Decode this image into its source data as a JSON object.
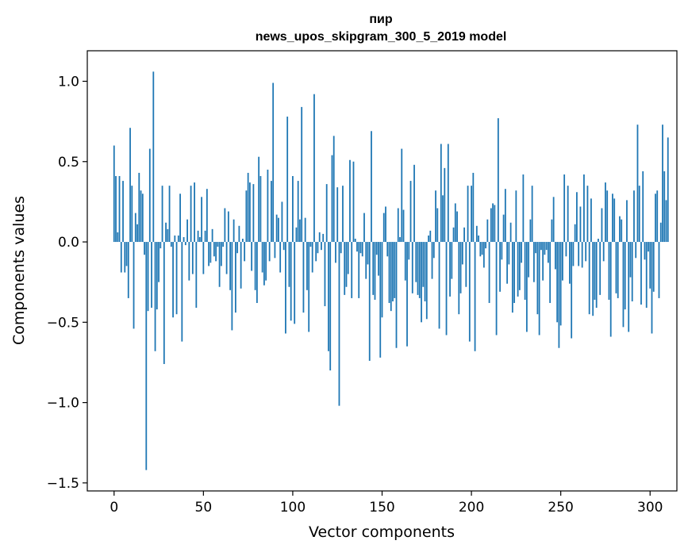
{
  "chart_data": {
    "type": "bar",
    "title": "пир",
    "subtitle": "news_upos_skipgram_300_5_2019 model",
    "xlabel": "Vector components",
    "ylabel": "Components values",
    "xlim": [
      -15,
      315
    ],
    "ylim": [
      -1.55,
      1.19
    ],
    "xticks": [
      0,
      50,
      100,
      150,
      200,
      250,
      300
    ],
    "xtick_labels": [
      "0",
      "50",
      "100",
      "150",
      "200",
      "250",
      "300"
    ],
    "yticks": [
      -1.5,
      -1.0,
      -0.5,
      0.0,
      0.5,
      1.0
    ],
    "ytick_labels": [
      "−1.5",
      "−1.0",
      "−0.5",
      "0.0",
      "0.5",
      "1.0"
    ],
    "bar_color": "#1f77b4",
    "grid": false,
    "values": [
      0.6,
      0.41,
      0.06,
      0.41,
      -0.19,
      0.38,
      -0.19,
      -0.15,
      -0.35,
      0.71,
      0.35,
      -0.54,
      0.18,
      0.11,
      0.43,
      0.32,
      0.3,
      -0.08,
      -1.42,
      -0.43,
      0.58,
      -0.41,
      1.06,
      -0.68,
      -0.42,
      -0.25,
      -0.04,
      0.35,
      -0.76,
      0.12,
      0.08,
      0.35,
      -0.03,
      -0.47,
      0.04,
      -0.45,
      0.04,
      0.3,
      -0.62,
      0.03,
      -0.02,
      0.14,
      -0.24,
      0.35,
      -0.2,
      0.37,
      -0.41,
      0.07,
      0.03,
      0.28,
      -0.2,
      0.07,
      0.33,
      -0.15,
      -0.13,
      0.08,
      -0.09,
      -0.12,
      -0.03,
      -0.28,
      -0.15,
      -0.03,
      0.21,
      -0.2,
      0.19,
      -0.3,
      -0.55,
      0.14,
      -0.44,
      -0.07,
      0.1,
      -0.29,
      0.02,
      -0.12,
      0.32,
      0.43,
      0.37,
      -0.18,
      0.36,
      -0.3,
      -0.38,
      0.53,
      0.41,
      -0.19,
      -0.27,
      -0.24,
      0.45,
      -0.12,
      0.38,
      0.99,
      -0.1,
      0.17,
      0.15,
      -0.19,
      0.25,
      -0.05,
      -0.57,
      0.78,
      -0.28,
      -0.49,
      0.41,
      -0.51,
      0.09,
      0.38,
      0.14,
      0.84,
      -0.44,
      0.15,
      -0.3,
      -0.56,
      -0.03,
      -0.19,
      0.92,
      -0.12,
      -0.07,
      0.06,
      -0.05,
      0.05,
      -0.4,
      0.36,
      -0.68,
      -0.8,
      0.54,
      0.66,
      -0.13,
      0.34,
      -1.02,
      -0.07,
      0.35,
      -0.33,
      -0.28,
      -0.2,
      0.51,
      -0.35,
      0.5,
      0.02,
      -0.06,
      -0.35,
      -0.07,
      -0.09,
      0.18,
      -0.23,
      -0.14,
      -0.74,
      0.69,
      -0.33,
      -0.36,
      -0.08,
      -0.21,
      -0.72,
      -0.47,
      0.18,
      0.22,
      -0.09,
      -0.38,
      -0.43,
      -0.37,
      -0.35,
      -0.66,
      0.21,
      0.03,
      0.58,
      0.2,
      -0.24,
      -0.65,
      -0.11,
      0.38,
      -0.32,
      0.48,
      -0.25,
      -0.33,
      -0.35,
      -0.5,
      -0.28,
      -0.37,
      -0.48,
      0.04,
      0.07,
      -0.23,
      -0.1,
      0.32,
      0.21,
      -0.54,
      0.61,
      0.29,
      0.46,
      -0.58,
      0.61,
      -0.34,
      -0.23,
      0.09,
      0.24,
      0.19,
      -0.45,
      -0.32,
      -0.14,
      0.09,
      -0.28,
      0.35,
      -0.62,
      0.35,
      0.43,
      -0.68,
      0.1,
      0.04,
      -0.09,
      -0.08,
      -0.16,
      -0.04,
      0.14,
      -0.38,
      0.21,
      0.24,
      0.23,
      -0.58,
      0.77,
      -0.31,
      -0.11,
      0.17,
      0.33,
      -0.26,
      -0.14,
      0.12,
      -0.44,
      -0.38,
      0.32,
      -0.34,
      -0.3,
      -0.13,
      0.42,
      -0.36,
      -0.56,
      -0.22,
      0.14,
      0.35,
      -0.25,
      -0.07,
      -0.45,
      -0.58,
      -0.05,
      -0.24,
      -0.08,
      -0.05,
      -0.13,
      -0.38,
      0.14,
      0.28,
      -0.17,
      -0.5,
      -0.66,
      -0.52,
      -0.24,
      0.42,
      -0.09,
      0.35,
      -0.26,
      -0.6,
      -0.15,
      0.11,
      0.31,
      -0.15,
      0.22,
      -0.16,
      0.42,
      -0.12,
      0.35,
      -0.45,
      0.27,
      -0.46,
      -0.36,
      -0.41,
      0.02,
      -0.33,
      0.21,
      -0.12,
      0.37,
      0.32,
      -0.36,
      -0.59,
      0.3,
      0.27,
      -0.32,
      -0.35,
      0.16,
      0.14,
      -0.53,
      -0.42,
      0.26,
      -0.56,
      -0.22,
      -0.37,
      0.32,
      -0.1,
      0.73,
      0.35,
      -0.39,
      0.44,
      -0.11,
      -0.41,
      -0.06,
      -0.29,
      -0.57,
      -0.31,
      0.3,
      0.32,
      -0.35,
      0.12,
      0.73,
      0.44,
      0.26,
      0.65
    ]
  }
}
